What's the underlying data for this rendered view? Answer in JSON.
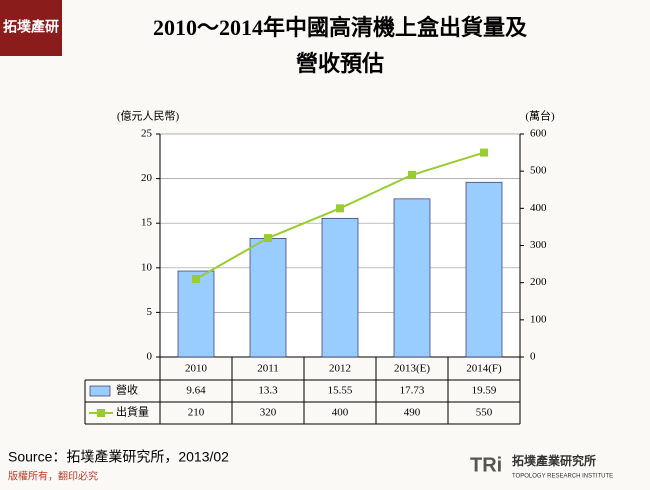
{
  "logo": {
    "text": "拓墣產研"
  },
  "chart_data": {
    "type": "bar-line",
    "title": [
      "2010～2014年中國高清機上盒出貨量及",
      "營收預估"
    ],
    "y_label": "(億元人民幣)",
    "y2_label": "(萬台)",
    "categories": [
      "2010",
      "2011",
      "2012",
      "2013(E)",
      "2014(F)"
    ],
    "series": [
      {
        "name": "營收",
        "type": "bar",
        "color": "#99ccff",
        "values": [
          9.64,
          13.3,
          15.55,
          17.73,
          19.59
        ]
      },
      {
        "name": "出貨量",
        "type": "line",
        "axis": "y2",
        "color": "#99cc33",
        "values": [
          210,
          320,
          400,
          490,
          550
        ]
      }
    ],
    "ylim": [
      0,
      25
    ],
    "yticks": [
      0,
      5,
      10,
      15,
      20,
      25
    ],
    "y2lim": [
      0,
      600
    ],
    "y2ticks": [
      0,
      100,
      200,
      300,
      400,
      500,
      600
    ],
    "grid": true
  },
  "source": "Source：拓墣產業研究所，2013/02",
  "footer": "版權所有，翻印必究",
  "brand": {
    "mark": "TRi",
    "name": "拓墣產業研究所",
    "english": "TOPOLOGY RESEARCH INSTITUTE"
  }
}
